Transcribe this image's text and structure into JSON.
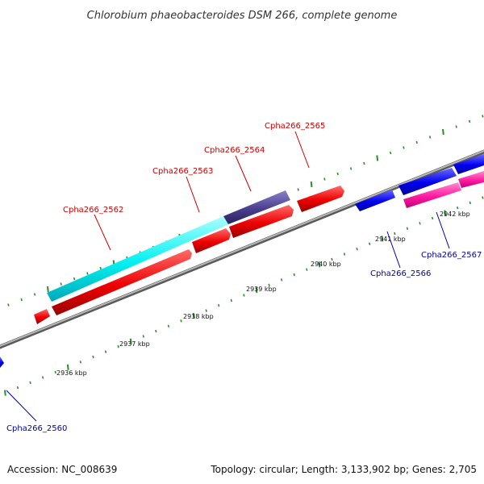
{
  "title": "Chlorobium phaeobacteroides DSM 266, complete genome",
  "footer": {
    "accession": "Accession: NC_008639",
    "summary": "Topology: circular; Length: 3,133,902 bp; Genes: 2,705"
  },
  "colors": {
    "forward_gene": "#ff0000",
    "reverse_gene": "#0000ee",
    "forward_label": "#cc0000",
    "reverse_label": "#0000aa",
    "highlight_cyan": "#00ffff",
    "highlight_navy": "#4a3f8f",
    "highlight_pink": "#ff1493",
    "backbone": "#888888",
    "tick": "#2e8b2e"
  },
  "scale": {
    "ticks": [
      "2936 kbp",
      "2937 kbp",
      "2938 kbp",
      "2939 kbp",
      "2940 kbp",
      "2941 kbp",
      "2942 kbp"
    ]
  },
  "genes": {
    "forward": [
      "Cpha266_2562",
      "Cpha266_2563",
      "Cpha266_2564",
      "Cpha266_2565"
    ],
    "reverse": [
      "Cpha266_2560",
      "Cpha266_2566",
      "Cpha266_2567"
    ]
  }
}
